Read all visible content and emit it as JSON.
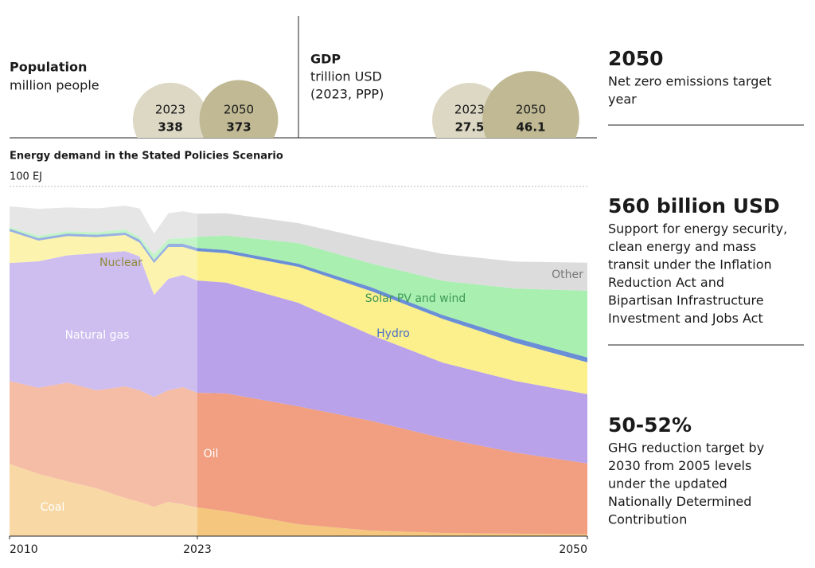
{
  "indicators": [
    {
      "title": "Population",
      "unit": [
        "million people"
      ],
      "years": [
        "2023",
        "2050"
      ],
      "values": [
        338,
        373
      ],
      "colors": [
        "#dcd8c4",
        "#c0b994"
      ]
    },
    {
      "title": "GDP",
      "unit": [
        "trillion USD",
        "(2023, PPP)"
      ],
      "years": [
        "2023",
        "2050"
      ],
      "values": [
        27.5,
        46.1
      ],
      "colors": [
        "#dcd8c4",
        "#c0b994"
      ]
    }
  ],
  "chart_data": {
    "type": "stacked-area",
    "title": "Energy demand in the Stated Policies Scenario",
    "x": [
      2010,
      2012,
      2014,
      2016,
      2018,
      2019,
      2020,
      2021,
      2022,
      2023,
      2025,
      2030,
      2035,
      2040,
      2045,
      2050
    ],
    "xlim": [
      2010,
      2050
    ],
    "xticks": [
      2010,
      2023,
      2050
    ],
    "ylim": [
      0,
      100
    ],
    "yticks": [
      {
        "value": 100,
        "label": "100 EJ"
      }
    ],
    "series": [
      {
        "name": "Coal",
        "color": "#f5c77e",
        "values": [
          20.7,
          17.8,
          15.7,
          13.7,
          10.9,
          9.8,
          8.4,
          9.8,
          9.1,
          8.2,
          7.1,
          3.4,
          1.6,
          0.9,
          0.7,
          0.5
        ]
      },
      {
        "name": "Oil",
        "color": "#f19f80",
        "values": [
          23.7,
          24.6,
          28.2,
          28.0,
          31.9,
          31.9,
          31.4,
          31.9,
          33.5,
          32.8,
          33.7,
          33.7,
          31.4,
          27.1,
          23.2,
          20.3
        ]
      },
      {
        "name": "Natural gas",
        "color": "#b9a2ea",
        "values": [
          33.7,
          36.2,
          36.4,
          39.2,
          38.7,
          38.3,
          29.2,
          31.9,
          32.1,
          32.1,
          31.7,
          29.6,
          24.6,
          21.6,
          20.5,
          19.8
        ]
      },
      {
        "name": "Nuclear",
        "color": "#fbf08c",
        "values": [
          9.1,
          5.9,
          5.5,
          4.6,
          4.6,
          3.9,
          9.1,
          9.1,
          8.0,
          8.4,
          8.4,
          10.3,
          12.5,
          12.5,
          10.9,
          9.1
        ]
      },
      {
        "name": "Hydro",
        "color": "#6b8fd6",
        "values": [
          0.7,
          0.7,
          0.7,
          0.7,
          0.7,
          0.9,
          0.9,
          0.9,
          0.9,
          0.9,
          0.9,
          0.9,
          1.1,
          1.1,
          1.4,
          1.4
        ]
      },
      {
        "name": "Solar PV and wind",
        "color": "#a8efb0",
        "values": [
          0.5,
          0.7,
          0.7,
          0.7,
          0.9,
          0.7,
          1.6,
          1.4,
          1.6,
          3.2,
          4.1,
          5.9,
          6.8,
          9.8,
          14.1,
          19.1
        ]
      },
      {
        "name": "Other",
        "color": "#dcdcdc",
        "values": [
          5.9,
          7.7,
          6.8,
          6.8,
          6.8,
          8.2,
          5.9,
          7.3,
          7.7,
          6.6,
          6.4,
          5.7,
          6.8,
          7.7,
          7.7,
          8.0
        ]
      }
    ]
  },
  "facts": [
    {
      "headline": "2050",
      "text": [
        "Net zero emissions target",
        "year"
      ]
    },
    {
      "headline": "560 billion USD",
      "text": [
        "Support for energy security,",
        "clean energy and mass",
        "transit under the Inflation",
        "Reduction Act and",
        "Bipartisan Infrastructure",
        "Investment and Jobs Act"
      ]
    },
    {
      "headline": "50-52%",
      "text": [
        "GHG reduction target by",
        "2030 from 2005 levels",
        "under the updated",
        "Nationally Determined",
        "Contribution"
      ]
    }
  ]
}
